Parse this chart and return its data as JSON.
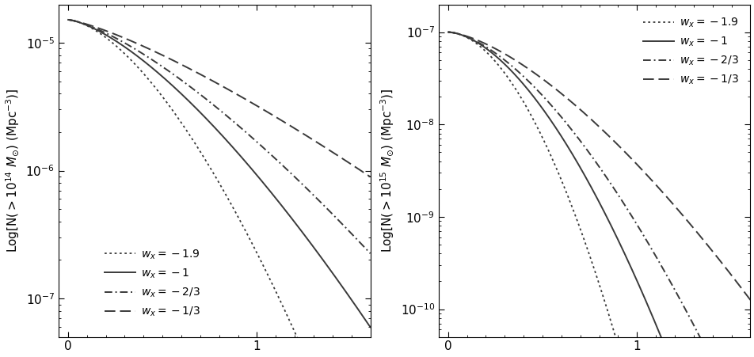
{
  "panel1": {
    "ylabel": "Log[N(>10$^{14}$ M$_{\\odot}$) (Mpc$^{-3}$)]",
    "ylim_log": [
      -7.3,
      -4.7
    ],
    "xlim": [
      -0.05,
      1.6
    ],
    "models": [
      {
        "label": "w_x = -1.9",
        "linestyle": "dotted",
        "wx": -1.9,
        "n0_log": -4.82,
        "k": 4.2,
        "alpha": 1.6
      },
      {
        "label": "w_x = -1",
        "linestyle": "solid",
        "wx": -1.0,
        "n0_log": -4.82,
        "k": 2.8,
        "alpha": 1.45
      },
      {
        "label": "w_x = -2/3",
        "linestyle": "dashdot",
        "wx": -0.6667,
        "n0_log": -4.82,
        "k": 2.2,
        "alpha": 1.38
      },
      {
        "label": "w_x = -1/3",
        "linestyle": "dashed",
        "wx": -0.3333,
        "n0_log": -4.82,
        "k": 1.55,
        "alpha": 1.28
      }
    ]
  },
  "panel2": {
    "ylabel": "Log[N(>10$^{15}$ M$_{\\odot}$) (Mpc$^{-3}$)]",
    "ylim_log": [
      -10.3,
      -6.7
    ],
    "xlim": [
      -0.05,
      1.6
    ],
    "models": [
      {
        "label": "w_x = -1.9",
        "linestyle": "dotted",
        "wx": -1.9,
        "n0_log": -7.0,
        "k": 9.5,
        "alpha": 1.85
      },
      {
        "label": "w_x = -1",
        "linestyle": "solid",
        "wx": -1.0,
        "n0_log": -7.0,
        "k": 6.2,
        "alpha": 1.7
      },
      {
        "label": "w_x = -2/3",
        "linestyle": "dashdot",
        "wx": -0.6667,
        "n0_log": -7.0,
        "k": 4.8,
        "alpha": 1.6
      },
      {
        "label": "w_x = -1/3",
        "linestyle": "dashed",
        "wx": -0.3333,
        "n0_log": -7.0,
        "k": 3.3,
        "alpha": 1.5
      }
    ]
  },
  "line_color": "#3a3a3a",
  "background_color": "#ffffff",
  "text_color": "#000000",
  "fontsize": 11,
  "legend_fontsize": 10
}
